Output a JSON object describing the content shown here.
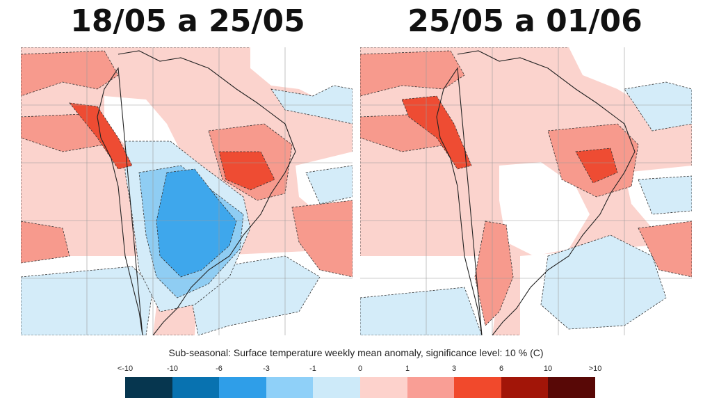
{
  "titles": {
    "left": "18/05 a 25/05",
    "right": "25/05 a 01/06"
  },
  "caption": "Sub-seasonal: Surface temperature weekly mean anomaly, significance level: 10 % (C)",
  "legend": {
    "ticks": [
      "<-10",
      "-10",
      "-6",
      "-3",
      "-1",
      "0",
      "1",
      "3",
      "6",
      "10",
      ">10"
    ],
    "colors": [
      "#06364f",
      "#0872b0",
      "#2f9ee8",
      "#8fd0f8",
      "#cdeaf9",
      "#fdd2cc",
      "#f99e95",
      "#f1492c",
      "#a21508",
      "#580806"
    ]
  },
  "map_colors": {
    "ocean": "#ffffff",
    "warm_light": "#fbd3cd",
    "warm_medium": "#f79a8d",
    "warm_strong": "#ee4c33",
    "cool_light": "#d4ecf9",
    "cool_medium": "#8fcdf3",
    "cool_strong": "#3ea7ec",
    "coast": "#222222",
    "grid": "#9a9a9a"
  }
}
